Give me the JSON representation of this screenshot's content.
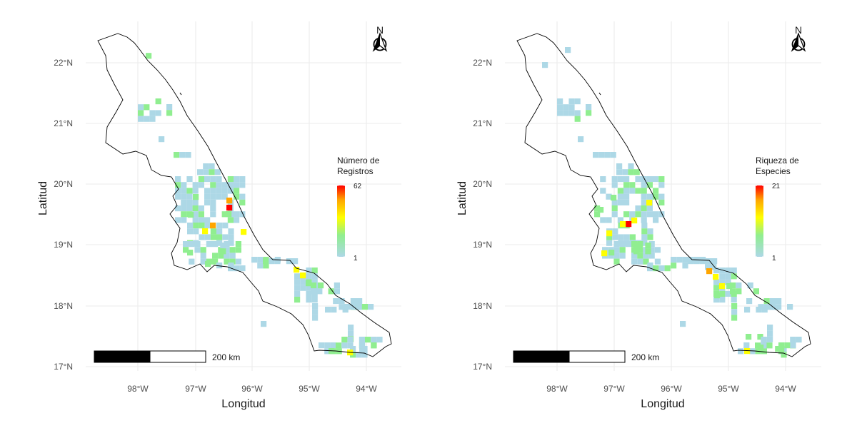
{
  "colors": {
    "low": "#add8e6",
    "mid_green": "#90ee90",
    "mid_yellow": "#ffff00",
    "high_orange": "#ffa500",
    "max_red": "#ff0000",
    "grid": "#ebebeb",
    "outline": "#000000"
  },
  "axes": {
    "x_label": "Longitud",
    "y_label": "Latitud",
    "x_ticks": [
      "98°W",
      "97°W",
      "96°W",
      "95°W",
      "94°W"
    ],
    "y_ticks": [
      "22°N",
      "21°N",
      "20°N",
      "19°N",
      "18°N",
      "17°N"
    ]
  },
  "panels": [
    {
      "legend": {
        "title_line1": "Número de",
        "title_line2": "Registros",
        "max_label": "62",
        "min_label": "1"
      },
      "north_arrow": "N",
      "scale_label": "200 km",
      "icon": "north-arrow-icon"
    },
    {
      "legend": {
        "title_line1": "Riqueza de",
        "title_line2": "Especies",
        "max_label": "21",
        "min_label": "1"
      },
      "north_arrow": "N",
      "scale_label": "200 km",
      "icon": "north-arrow-icon"
    }
  ]
}
